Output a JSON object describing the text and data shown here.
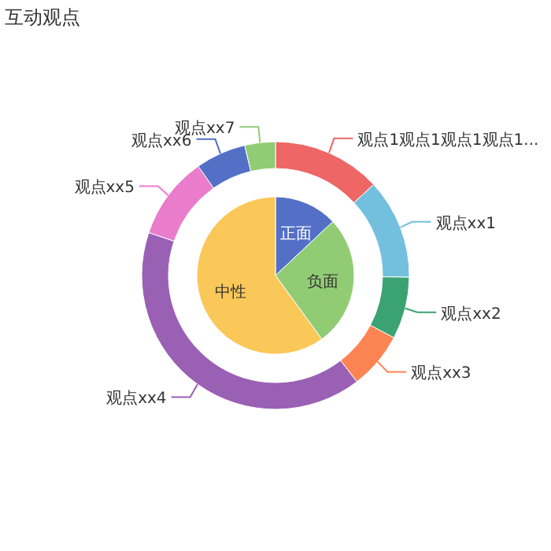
{
  "chart_data": [
    {
      "type": "pie",
      "title": "互动观点",
      "categories": [
        "正面",
        "负面",
        "中性"
      ],
      "values": [
        13,
        27,
        60
      ],
      "colors": [
        "#5470c6",
        "#91cc75",
        "#fac858"
      ]
    },
    {
      "type": "donut",
      "categories": [
        "观点1观点1观点1观点1...",
        "观点xx1",
        "观点xx2",
        "观点xx3",
        "观点xx4",
        "观点xx5",
        "观点xx6",
        "观点xx7"
      ],
      "values": [
        13.1,
        12.1,
        7.5,
        6.9,
        40.6,
        10,
        6.1,
        3.7
      ],
      "colors": [
        "#ee6666",
        "#73c0de",
        "#3ba272",
        "#fc8452",
        "#9a60b4",
        "#ea7ccc",
        "#5470c6",
        "#91cc75"
      ]
    }
  ]
}
